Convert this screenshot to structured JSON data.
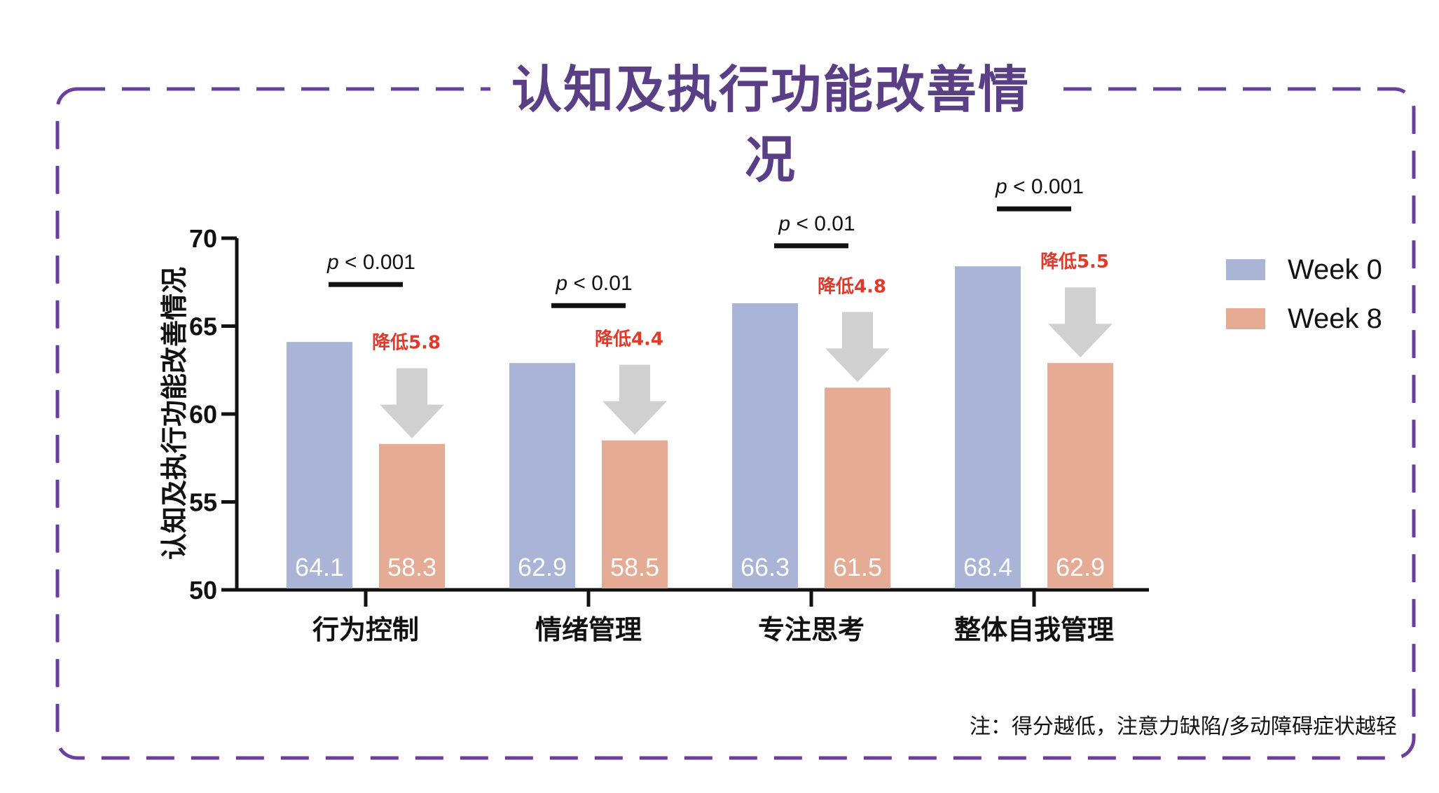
{
  "title": "认知及执行功能改善情况",
  "note": "注：得分越低，注意力缺陷/多动障碍症状越轻",
  "colors": {
    "frame": "#6a3f9e",
    "week0": "#aab4d6",
    "week8": "#e6ab95",
    "arrow": "#d0d0d0",
    "reduction": "#e23a2a",
    "title": "#5a3f86"
  },
  "chart_data": {
    "type": "bar",
    "ylabel": "认知及执行功能改善情况",
    "ylim": [
      50,
      70
    ],
    "yticks": [
      "50",
      "55",
      "60",
      "65",
      "70"
    ],
    "categories": [
      "行为控制",
      "情绪管理",
      "专注思考",
      "整体自我管理"
    ],
    "series": [
      {
        "name": "Week 0",
        "values": [
          64.1,
          62.9,
          66.3,
          68.4
        ],
        "labels": [
          "64.1",
          "62.9",
          "66.3",
          "68.4"
        ]
      },
      {
        "name": "Week 8",
        "values": [
          58.3,
          58.5,
          61.5,
          62.9
        ],
        "labels": [
          "58.3",
          "58.5",
          "61.5",
          "62.9"
        ]
      }
    ],
    "significance": [
      {
        "p": "p",
        "rest": " < 0.001"
      },
      {
        "p": "p",
        "rest": " < 0.01"
      },
      {
        "p": "p",
        "rest": " < 0.01"
      },
      {
        "p": "p",
        "rest": " < 0.001"
      }
    ],
    "reductions": [
      "降低5.8",
      "降低4.4",
      "降低4.8",
      "降低5.5"
    ],
    "legend_position": "right"
  }
}
